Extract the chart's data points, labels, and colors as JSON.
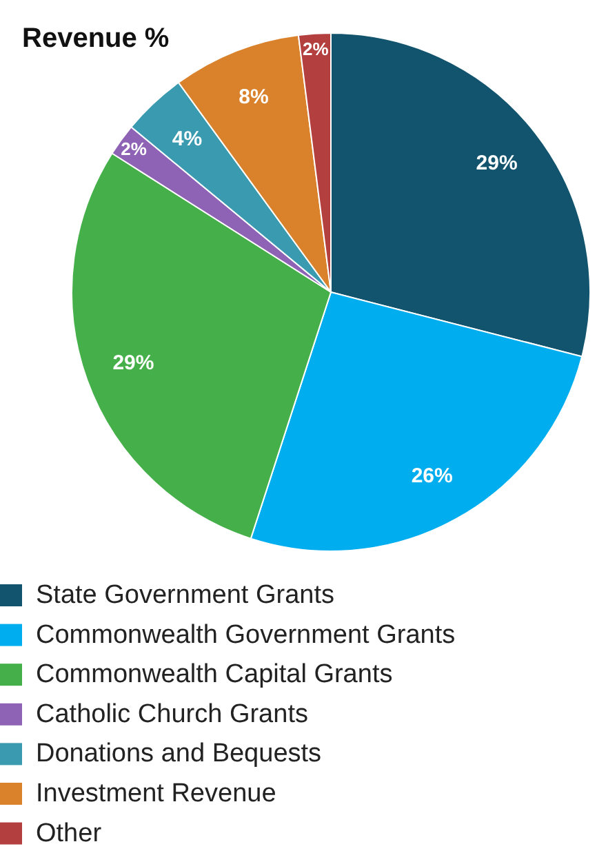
{
  "chart_data": {
    "type": "pie",
    "title": "Revenue %",
    "categories": [
      "State Government Grants",
      "Commonwealth Government Grants",
      "Commonwealth Capital Grants",
      "Catholic Church Grants",
      "Donations and Bequests",
      "Investment Revenue",
      "Other"
    ],
    "values": [
      29,
      26,
      29,
      2,
      4,
      8,
      2
    ],
    "colors": [
      "#12546e",
      "#00aeef",
      "#45b04a",
      "#8e63b5",
      "#3a9ab0",
      "#d9822b",
      "#b3403f"
    ],
    "value_labels": [
      "29%",
      "26%",
      "29%",
      "2%",
      "4%",
      "8%",
      "2%"
    ],
    "legend": "bottom"
  }
}
